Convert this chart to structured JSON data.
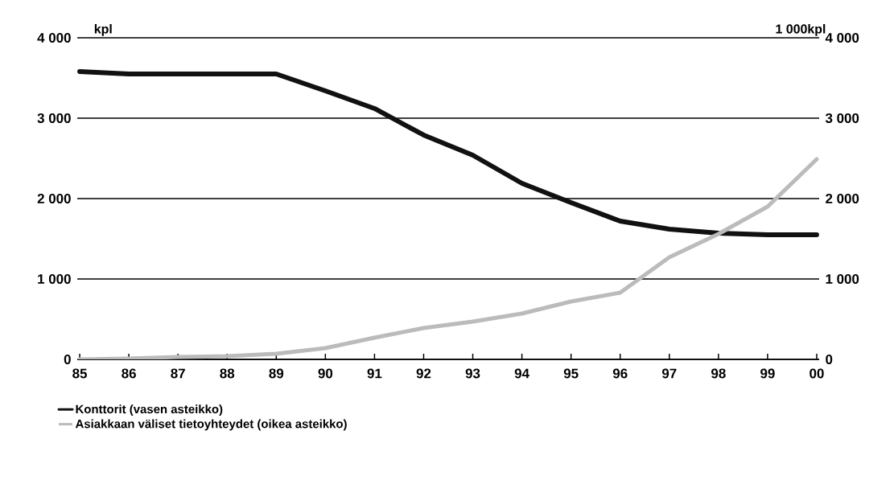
{
  "chart_data": {
    "type": "line",
    "categories": [
      "85",
      "86",
      "87",
      "88",
      "89",
      "90",
      "91",
      "92",
      "93",
      "94",
      "95",
      "96",
      "97",
      "98",
      "99",
      "00"
    ],
    "series": [
      {
        "name": "Konttorit (vasen asteikko)",
        "color": "#111111",
        "values": [
          3580,
          3550,
          3550,
          3550,
          3550,
          3340,
          3120,
          2790,
          2540,
          2190,
          1950,
          1720,
          1620,
          1570,
          1550,
          1550
        ]
      },
      {
        "name": "Asiakkaan väliset tietoyhteydet (oikea asteikko)",
        "color": "#bbbbbb",
        "axis": "y2",
        "values": [
          0,
          10,
          30,
          40,
          70,
          140,
          270,
          390,
          470,
          570,
          720,
          830,
          1270,
          1560,
          1900,
          2490
        ]
      }
    ],
    "ylabel": "kpl",
    "y2label": "1 000kpl",
    "ylim": [
      0,
      4000
    ],
    "yticks": [
      0,
      {
        "value": 1000,
        "label": "1 000"
      },
      {
        "value": 2000,
        "label": "2 000"
      },
      {
        "value": 3000,
        "label": "3 000"
      },
      {
        "value": 4000,
        "label": "4 000"
      }
    ],
    "y2lim": [
      0,
      4000
    ],
    "y2ticks": [
      0,
      {
        "value": 1000,
        "label": "1 000"
      },
      {
        "value": 2000,
        "label": "2 000"
      },
      {
        "value": 3000,
        "label": "3 000"
      },
      {
        "value": 4000,
        "label": "4 000"
      }
    ],
    "grid": "y",
    "legend": "bottom",
    "marker": "none",
    "line_style": "solid"
  }
}
